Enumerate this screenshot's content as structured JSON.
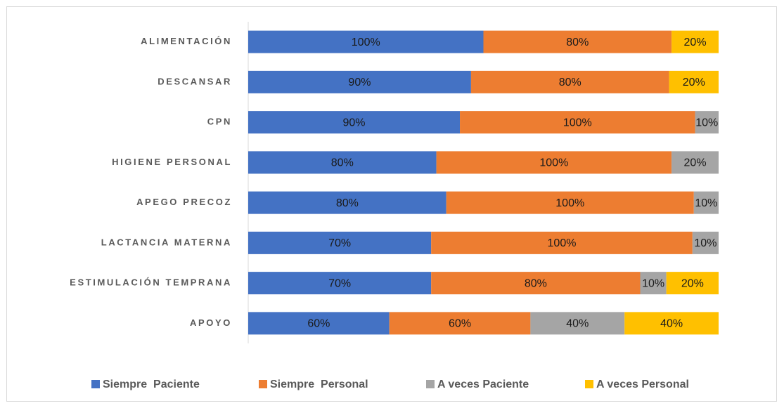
{
  "chart_data": {
    "type": "bar",
    "orientation": "horizontal",
    "stacking": "percent",
    "categories": [
      "ALIMENTACIÓN",
      "DESCANSAR",
      "CPN",
      "HIGIENE PERSONAL",
      "APEGO PRECOZ",
      "LACTANCIA MATERNA",
      "ESTIMULACIÓN TEMPRANA",
      "APOYO"
    ],
    "series": [
      {
        "name": "Siempre  Paciente",
        "color": "#4472c4",
        "values": [
          100,
          90,
          90,
          80,
          80,
          70,
          70,
          60
        ],
        "value_labels": [
          "100%",
          "90%",
          "90%",
          "80%",
          "80%",
          "70%",
          "70%",
          "60%"
        ]
      },
      {
        "name": "Siempre  Personal",
        "color": "#ed7d31",
        "values": [
          80,
          80,
          100,
          100,
          100,
          100,
          80,
          60
        ],
        "value_labels": [
          "80%",
          "80%",
          "100%",
          "100%",
          "100%",
          "100%",
          "80%",
          "60%"
        ]
      },
      {
        "name": "A veces Paciente",
        "color": "#a5a5a5",
        "values": [
          null,
          null,
          10,
          20,
          10,
          10,
          10,
          40
        ],
        "value_labels": [
          null,
          null,
          "10%",
          "20%",
          "10%",
          "10%",
          "10%",
          "40%"
        ]
      },
      {
        "name": "A veces Personal",
        "color": "#ffc000",
        "values": [
          20,
          20,
          null,
          null,
          null,
          null,
          20,
          40
        ],
        "value_labels": [
          "20%",
          "20%",
          null,
          null,
          null,
          null,
          "20%",
          "40%"
        ]
      }
    ],
    "legend": "bottom"
  }
}
